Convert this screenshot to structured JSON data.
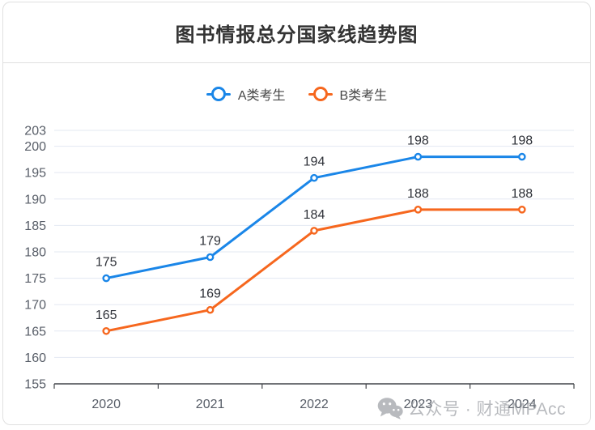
{
  "title": "图书情报总分国家线趋势图",
  "watermark": {
    "icon": "wechat-icon",
    "text": "公众号 · 财通MPAcc"
  },
  "colors": {
    "series_a": "#1a86e8",
    "series_b": "#f6671e",
    "grid": "#e3e8f2",
    "axis": "#42454a",
    "tick_label": "#575d67",
    "value_label": "#2e3138",
    "card_border": "#e0e0e0",
    "watermark_gray": "#8d9197"
  },
  "chart_data": {
    "type": "line",
    "title": "图书情报总分国家线趋势图",
    "categories": [
      "2020",
      "2021",
      "2022",
      "2023",
      "2024"
    ],
    "series": [
      {
        "name": "A类考生",
        "color": "#1a86e8",
        "values": [
          175,
          179,
          194,
          198,
          198
        ]
      },
      {
        "name": "B类考生",
        "color": "#f6671e",
        "values": [
          165,
          169,
          184,
          188,
          188
        ]
      }
    ],
    "ylim": [
      155,
      203
    ],
    "yticks": [
      155,
      160,
      165,
      170,
      175,
      180,
      185,
      190,
      195,
      200,
      203
    ],
    "xlabel": "",
    "ylabel": "",
    "grid": true,
    "legend_position": "top",
    "data_labels": true
  }
}
